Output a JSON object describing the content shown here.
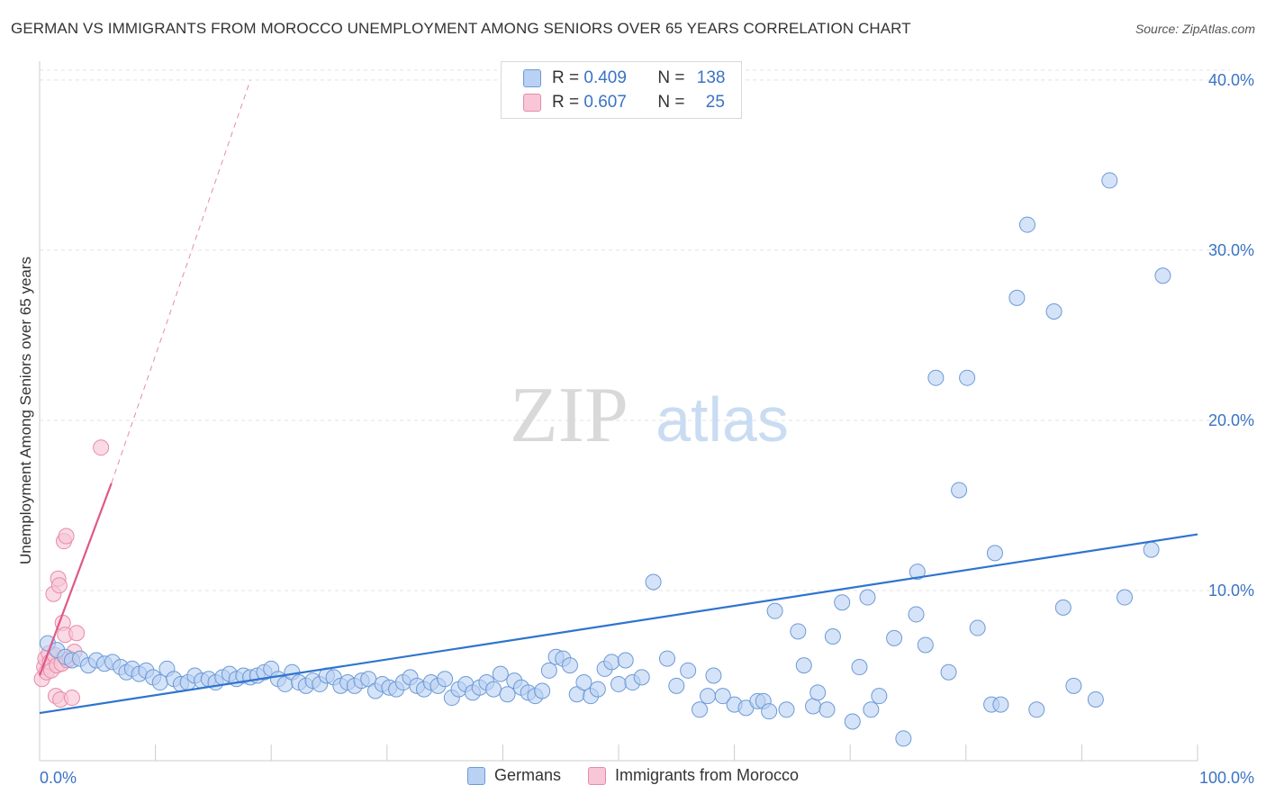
{
  "title": "GERMAN VS IMMIGRANTS FROM MOROCCO UNEMPLOYMENT AMONG SENIORS OVER 65 YEARS CORRELATION CHART",
  "source": "Source: ZipAtlas.com",
  "watermark": {
    "zip": "ZIP",
    "atlas": "atlas"
  },
  "colors": {
    "blue_fill": "#b9d1f3",
    "blue_stroke": "#6c9ad6",
    "blue_line": "#2f74cf",
    "pink_fill": "#f8c6d6",
    "pink_stroke": "#e88aa8",
    "pink_line": "#e0578a",
    "tick_text": "#3a73c4",
    "grid": "#e3e3e3"
  },
  "legend": {
    "rows": [
      {
        "r_label": "R = ",
        "r_value": "0.409",
        "n_label": "N = ",
        "n_value": "138"
      },
      {
        "r_label": "R = ",
        "r_value": "0.607",
        "n_label": "N = ",
        "n_value": "25"
      }
    ]
  },
  "bottom_legend": {
    "series1": "Germans",
    "series2": "Immigrants from Morocco"
  },
  "chart_data": {
    "type": "scatter",
    "title": "GERMAN VS IMMIGRANTS FROM MOROCCO UNEMPLOYMENT AMONG SENIORS OVER 65 YEARS CORRELATION CHART",
    "xlabel": "",
    "ylabel": "Unemployment Among Seniors over 65 years",
    "xlim": [
      0,
      100
    ],
    "ylim": [
      0,
      41
    ],
    "x_tick_labels": [
      "0.0%",
      "100.0%"
    ],
    "y_ticks": [
      10,
      20,
      30,
      40
    ],
    "y_tick_labels": [
      "10.0%",
      "20.0%",
      "30.0%",
      "40.0%"
    ],
    "grid": true,
    "legend_position": "top-center",
    "series": [
      {
        "name": "Germans",
        "color": "#b9d1f3",
        "trendline": {
          "x": [
            0,
            100
          ],
          "y": [
            2.8,
            13.3
          ],
          "style": "solid"
        },
        "points": [
          [
            0.7,
            6.9
          ],
          [
            1.5,
            6.5
          ],
          [
            2.2,
            6.1
          ],
          [
            2.8,
            5.9
          ],
          [
            3.5,
            6.0
          ],
          [
            4.2,
            5.6
          ],
          [
            4.9,
            5.9
          ],
          [
            5.6,
            5.7
          ],
          [
            6.3,
            5.8
          ],
          [
            7.0,
            5.5
          ],
          [
            7.5,
            5.2
          ],
          [
            8.0,
            5.4
          ],
          [
            8.6,
            5.1
          ],
          [
            9.2,
            5.3
          ],
          [
            9.8,
            4.9
          ],
          [
            10.4,
            4.6
          ],
          [
            11.0,
            5.4
          ],
          [
            11.6,
            4.8
          ],
          [
            12.2,
            4.5
          ],
          [
            12.8,
            4.6
          ],
          [
            13.4,
            5.0
          ],
          [
            14.0,
            4.7
          ],
          [
            14.6,
            4.8
          ],
          [
            15.2,
            4.6
          ],
          [
            15.8,
            4.9
          ],
          [
            16.4,
            5.1
          ],
          [
            17.0,
            4.8
          ],
          [
            17.6,
            5.0
          ],
          [
            18.2,
            4.9
          ],
          [
            18.8,
            5.0
          ],
          [
            19.4,
            5.2
          ],
          [
            20.0,
            5.4
          ],
          [
            20.6,
            4.8
          ],
          [
            21.2,
            4.5
          ],
          [
            21.8,
            5.2
          ],
          [
            22.4,
            4.6
          ],
          [
            23.0,
            4.4
          ],
          [
            23.6,
            4.7
          ],
          [
            24.2,
            4.5
          ],
          [
            24.8,
            5.0
          ],
          [
            25.4,
            4.9
          ],
          [
            26.0,
            4.4
          ],
          [
            26.6,
            4.6
          ],
          [
            27.2,
            4.4
          ],
          [
            27.8,
            4.7
          ],
          [
            28.4,
            4.8
          ],
          [
            29.0,
            4.1
          ],
          [
            29.6,
            4.5
          ],
          [
            30.2,
            4.3
          ],
          [
            30.8,
            4.2
          ],
          [
            31.4,
            4.6
          ],
          [
            32.0,
            4.9
          ],
          [
            32.6,
            4.4
          ],
          [
            33.2,
            4.2
          ],
          [
            33.8,
            4.6
          ],
          [
            34.4,
            4.4
          ],
          [
            35.0,
            4.8
          ],
          [
            35.6,
            3.7
          ],
          [
            36.2,
            4.2
          ],
          [
            36.8,
            4.5
          ],
          [
            37.4,
            4.0
          ],
          [
            38.0,
            4.3
          ],
          [
            38.6,
            4.6
          ],
          [
            39.2,
            4.2
          ],
          [
            39.8,
            5.1
          ],
          [
            40.4,
            3.9
          ],
          [
            41.0,
            4.7
          ],
          [
            41.6,
            4.3
          ],
          [
            42.2,
            4.0
          ],
          [
            42.8,
            3.8
          ],
          [
            43.4,
            4.1
          ],
          [
            44.0,
            5.3
          ],
          [
            44.6,
            6.1
          ],
          [
            45.2,
            6.0
          ],
          [
            45.8,
            5.6
          ],
          [
            46.4,
            3.9
          ],
          [
            47.0,
            4.6
          ],
          [
            47.6,
            3.8
          ],
          [
            48.2,
            4.2
          ],
          [
            48.8,
            5.4
          ],
          [
            49.4,
            5.8
          ],
          [
            50.0,
            4.5
          ],
          [
            50.6,
            5.9
          ],
          [
            51.2,
            4.6
          ],
          [
            52.0,
            4.9
          ],
          [
            53.0,
            10.5
          ],
          [
            54.2,
            6.0
          ],
          [
            55.0,
            4.4
          ],
          [
            56.0,
            5.3
          ],
          [
            57.0,
            3.0
          ],
          [
            57.7,
            3.8
          ],
          [
            58.2,
            5.0
          ],
          [
            59.0,
            3.8
          ],
          [
            60.0,
            3.3
          ],
          [
            61.0,
            3.1
          ],
          [
            62.0,
            3.5
          ],
          [
            62.5,
            3.5
          ],
          [
            63.0,
            2.9
          ],
          [
            63.5,
            8.8
          ],
          [
            64.5,
            3.0
          ],
          [
            65.5,
            7.6
          ],
          [
            66.0,
            5.6
          ],
          [
            66.8,
            3.2
          ],
          [
            67.2,
            4.0
          ],
          [
            68.0,
            3.0
          ],
          [
            68.5,
            7.3
          ],
          [
            69.3,
            9.3
          ],
          [
            70.2,
            2.3
          ],
          [
            70.8,
            5.5
          ],
          [
            71.5,
            9.6
          ],
          [
            71.8,
            3.0
          ],
          [
            72.5,
            3.8
          ],
          [
            73.8,
            7.2
          ],
          [
            74.6,
            1.3
          ],
          [
            75.8,
            11.1
          ],
          [
            75.7,
            8.6
          ],
          [
            76.5,
            6.8
          ],
          [
            77.4,
            22.5
          ],
          [
            78.5,
            5.2
          ],
          [
            79.4,
            15.9
          ],
          [
            80.1,
            22.5
          ],
          [
            81.0,
            7.8
          ],
          [
            82.2,
            3.3
          ],
          [
            82.5,
            12.2
          ],
          [
            83.0,
            3.3
          ],
          [
            84.4,
            27.2
          ],
          [
            85.3,
            31.5
          ],
          [
            86.1,
            3.0
          ],
          [
            87.6,
            26.4
          ],
          [
            88.4,
            9.0
          ],
          [
            89.3,
            4.4
          ],
          [
            91.2,
            3.6
          ],
          [
            93.7,
            9.6
          ],
          [
            96.0,
            12.4
          ],
          [
            97.0,
            28.5
          ],
          [
            92.4,
            34.1
          ]
        ]
      },
      {
        "name": "Immigrants from Morocco",
        "color": "#f8c6d6",
        "trendline": {
          "x": [
            0,
            6.2,
            18.2
          ],
          "y": [
            5.0,
            16.3,
            40.0
          ],
          "style": "solid-then-dashed"
        },
        "points": [
          [
            0.2,
            4.8
          ],
          [
            0.4,
            5.5
          ],
          [
            0.5,
            6.0
          ],
          [
            0.6,
            5.2
          ],
          [
            0.8,
            6.3
          ],
          [
            0.9,
            5.8
          ],
          [
            1.0,
            5.3
          ],
          [
            1.2,
            9.8
          ],
          [
            1.3,
            6.2
          ],
          [
            1.4,
            3.8
          ],
          [
            1.5,
            5.6
          ],
          [
            1.6,
            10.7
          ],
          [
            1.7,
            10.3
          ],
          [
            1.8,
            3.6
          ],
          [
            1.9,
            5.7
          ],
          [
            2.0,
            8.1
          ],
          [
            2.1,
            12.9
          ],
          [
            2.2,
            7.4
          ],
          [
            2.3,
            13.2
          ],
          [
            2.4,
            5.9
          ],
          [
            2.6,
            6.0
          ],
          [
            2.8,
            3.7
          ],
          [
            3.0,
            6.4
          ],
          [
            3.2,
            7.5
          ],
          [
            5.3,
            18.4
          ]
        ]
      }
    ]
  }
}
